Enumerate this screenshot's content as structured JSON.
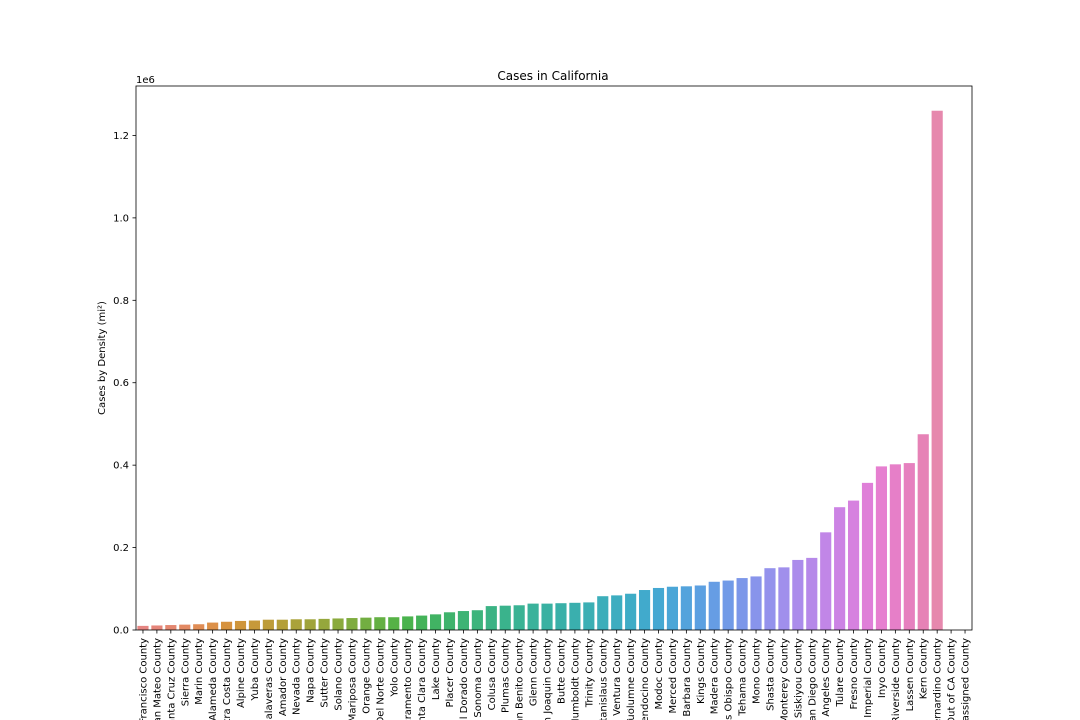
{
  "chart_data": {
    "type": "bar",
    "title": "Cases in California",
    "xlabel": "",
    "ylabel": "Cases by Density (mi²)",
    "scale_label": "1e6",
    "ylim": [
      0,
      1320000
    ],
    "yticks": [
      0,
      200000,
      400000,
      600000,
      800000,
      1000000,
      1200000
    ],
    "ytick_labels": [
      "0.0",
      "0.2",
      "0.4",
      "0.6",
      "0.8",
      "1.0",
      "1.2"
    ],
    "grid": false,
    "categories": [
      "San Francisco County",
      "San Mateo County",
      "Santa Cruz County",
      "Sierra County",
      "Marin County",
      "Alameda County",
      "Contra Costa County",
      "Alpine County",
      "Yuba County",
      "Calaveras County",
      "Amador County",
      "Nevada County",
      "Napa County",
      "Sutter County",
      "Solano County",
      "Mariposa County",
      "Orange County",
      "Del Norte County",
      "Yolo County",
      "Sacramento County",
      "Santa Clara County",
      "Lake County",
      "Placer County",
      "El Dorado County",
      "Sonoma County",
      "Colusa County",
      "Plumas County",
      "San Benito County",
      "Glenn County",
      "San Joaquin County",
      "Butte County",
      "Humboldt County",
      "Trinity County",
      "Stanislaus County",
      "Ventura County",
      "Tuolumne County",
      "Mendocino County",
      "Modoc County",
      "Merced County",
      "Santa Barbara County",
      "Kings County",
      "Madera County",
      "San Luis Obispo County",
      "Tehama County",
      "Mono County",
      "Shasta County",
      "Monterey County",
      "Siskiyou County",
      "San Diego County",
      "Los Angeles County",
      "Tulare County",
      "Fresno County",
      "Imperial County",
      "Inyo County",
      "Riverside County",
      "Lassen County",
      "Kern County",
      "San Bernardino County",
      "Out of CA County",
      "Unassigned County"
    ],
    "values": [
      10000,
      11000,
      12000,
      13000,
      14000,
      18000,
      20000,
      22000,
      23000,
      25000,
      25000,
      26000,
      26000,
      27000,
      28000,
      29000,
      30000,
      31000,
      31000,
      33000,
      35000,
      38000,
      43000,
      46000,
      48000,
      58000,
      59000,
      60000,
      64000,
      64000,
      65000,
      66000,
      67000,
      82000,
      84000,
      88000,
      97000,
      102000,
      105000,
      106000,
      108000,
      117000,
      120000,
      126000,
      130000,
      150000,
      152000,
      170000,
      175000,
      237000,
      298000,
      314000,
      357000,
      397000,
      402000,
      405000,
      475000,
      1260000,
      0,
      0
    ],
    "colors": [
      "#e58582",
      "#e5857a",
      "#e48770",
      "#e38a64",
      "#e08d55",
      "#dc9048",
      "#d6923e",
      "#cf953a",
      "#c6993a",
      "#bd9c39",
      "#b49f39",
      "#aaa23a",
      "#a0a43b",
      "#95a73c",
      "#8aaa3d",
      "#7fac3f",
      "#72ae41",
      "#64b043",
      "#56b246",
      "#4ab34e",
      "#44b359",
      "#41b363",
      "#3fb36c",
      "#3eb374",
      "#3db47c",
      "#3bb384",
      "#3ab38c",
      "#3ab394",
      "#3ab29b",
      "#39b1a2",
      "#39b0a8",
      "#3aafae",
      "#3bafb4",
      "#3caeba",
      "#3dadc0",
      "#3eacc6",
      "#41aacc",
      "#45a8d2",
      "#4ba6d7",
      "#53a3dc",
      "#5ca0e1",
      "#669de4",
      "#719ae7",
      "#7c97e9",
      "#8894eb",
      "#9492ec",
      "#a08fec",
      "#ab8ceb",
      "#b689e9",
      "#c186e7",
      "#cc83e4",
      "#d681df",
      "#df7fd8",
      "#e67fd0",
      "#e67fc8",
      "#e680bf",
      "#e682b6",
      "#e688ad",
      "#e58aa5",
      "#e58b9c"
    ]
  }
}
